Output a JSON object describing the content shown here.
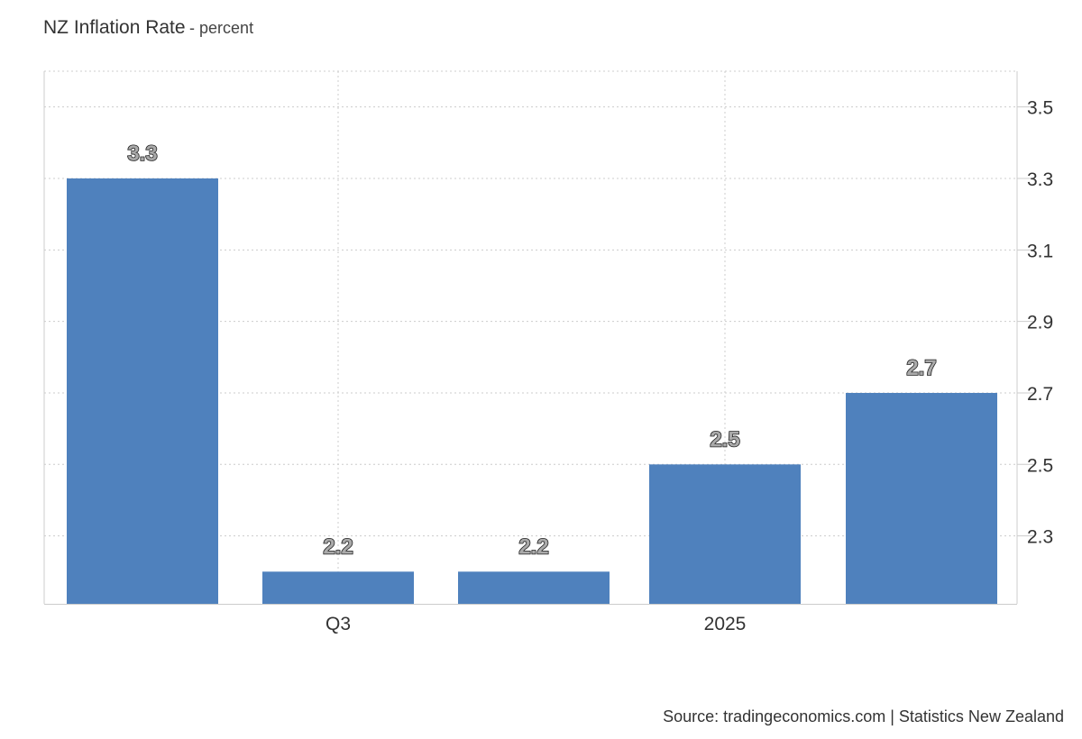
{
  "header": {
    "title": "NZ Inflation Rate",
    "subtitle": "percent"
  },
  "source": "Source: tradingeconomics.com | Statistics New Zealand",
  "colors": {
    "bar": "#4f81bd",
    "grid": "#cccccc",
    "axis": "#cccccc",
    "text": "#333333",
    "label_fill": "#aaaaaa",
    "label_stroke": "#222222"
  },
  "chart_data": {
    "type": "bar",
    "title": "NZ Inflation Rate",
    "subtitle": "percent",
    "categories": [
      "",
      "Q3",
      "",
      "2025",
      ""
    ],
    "values": [
      3.3,
      2.2,
      2.2,
      2.5,
      2.7
    ],
    "data_labels": [
      "3.3",
      "2.2",
      "2.2",
      "2.5",
      "2.7"
    ],
    "x_tick_labels": [
      "Q3",
      "2025"
    ],
    "y_ticks": [
      2.3,
      2.5,
      2.7,
      2.9,
      3.1,
      3.3,
      3.5
    ],
    "y_tick_labels": [
      "2.3",
      "2.5",
      "2.7",
      "2.9",
      "3.1",
      "3.3",
      "3.5"
    ],
    "ylim": [
      2.11,
      3.6
    ],
    "y_axis_side": "right",
    "grid": true,
    "legend": "none"
  }
}
